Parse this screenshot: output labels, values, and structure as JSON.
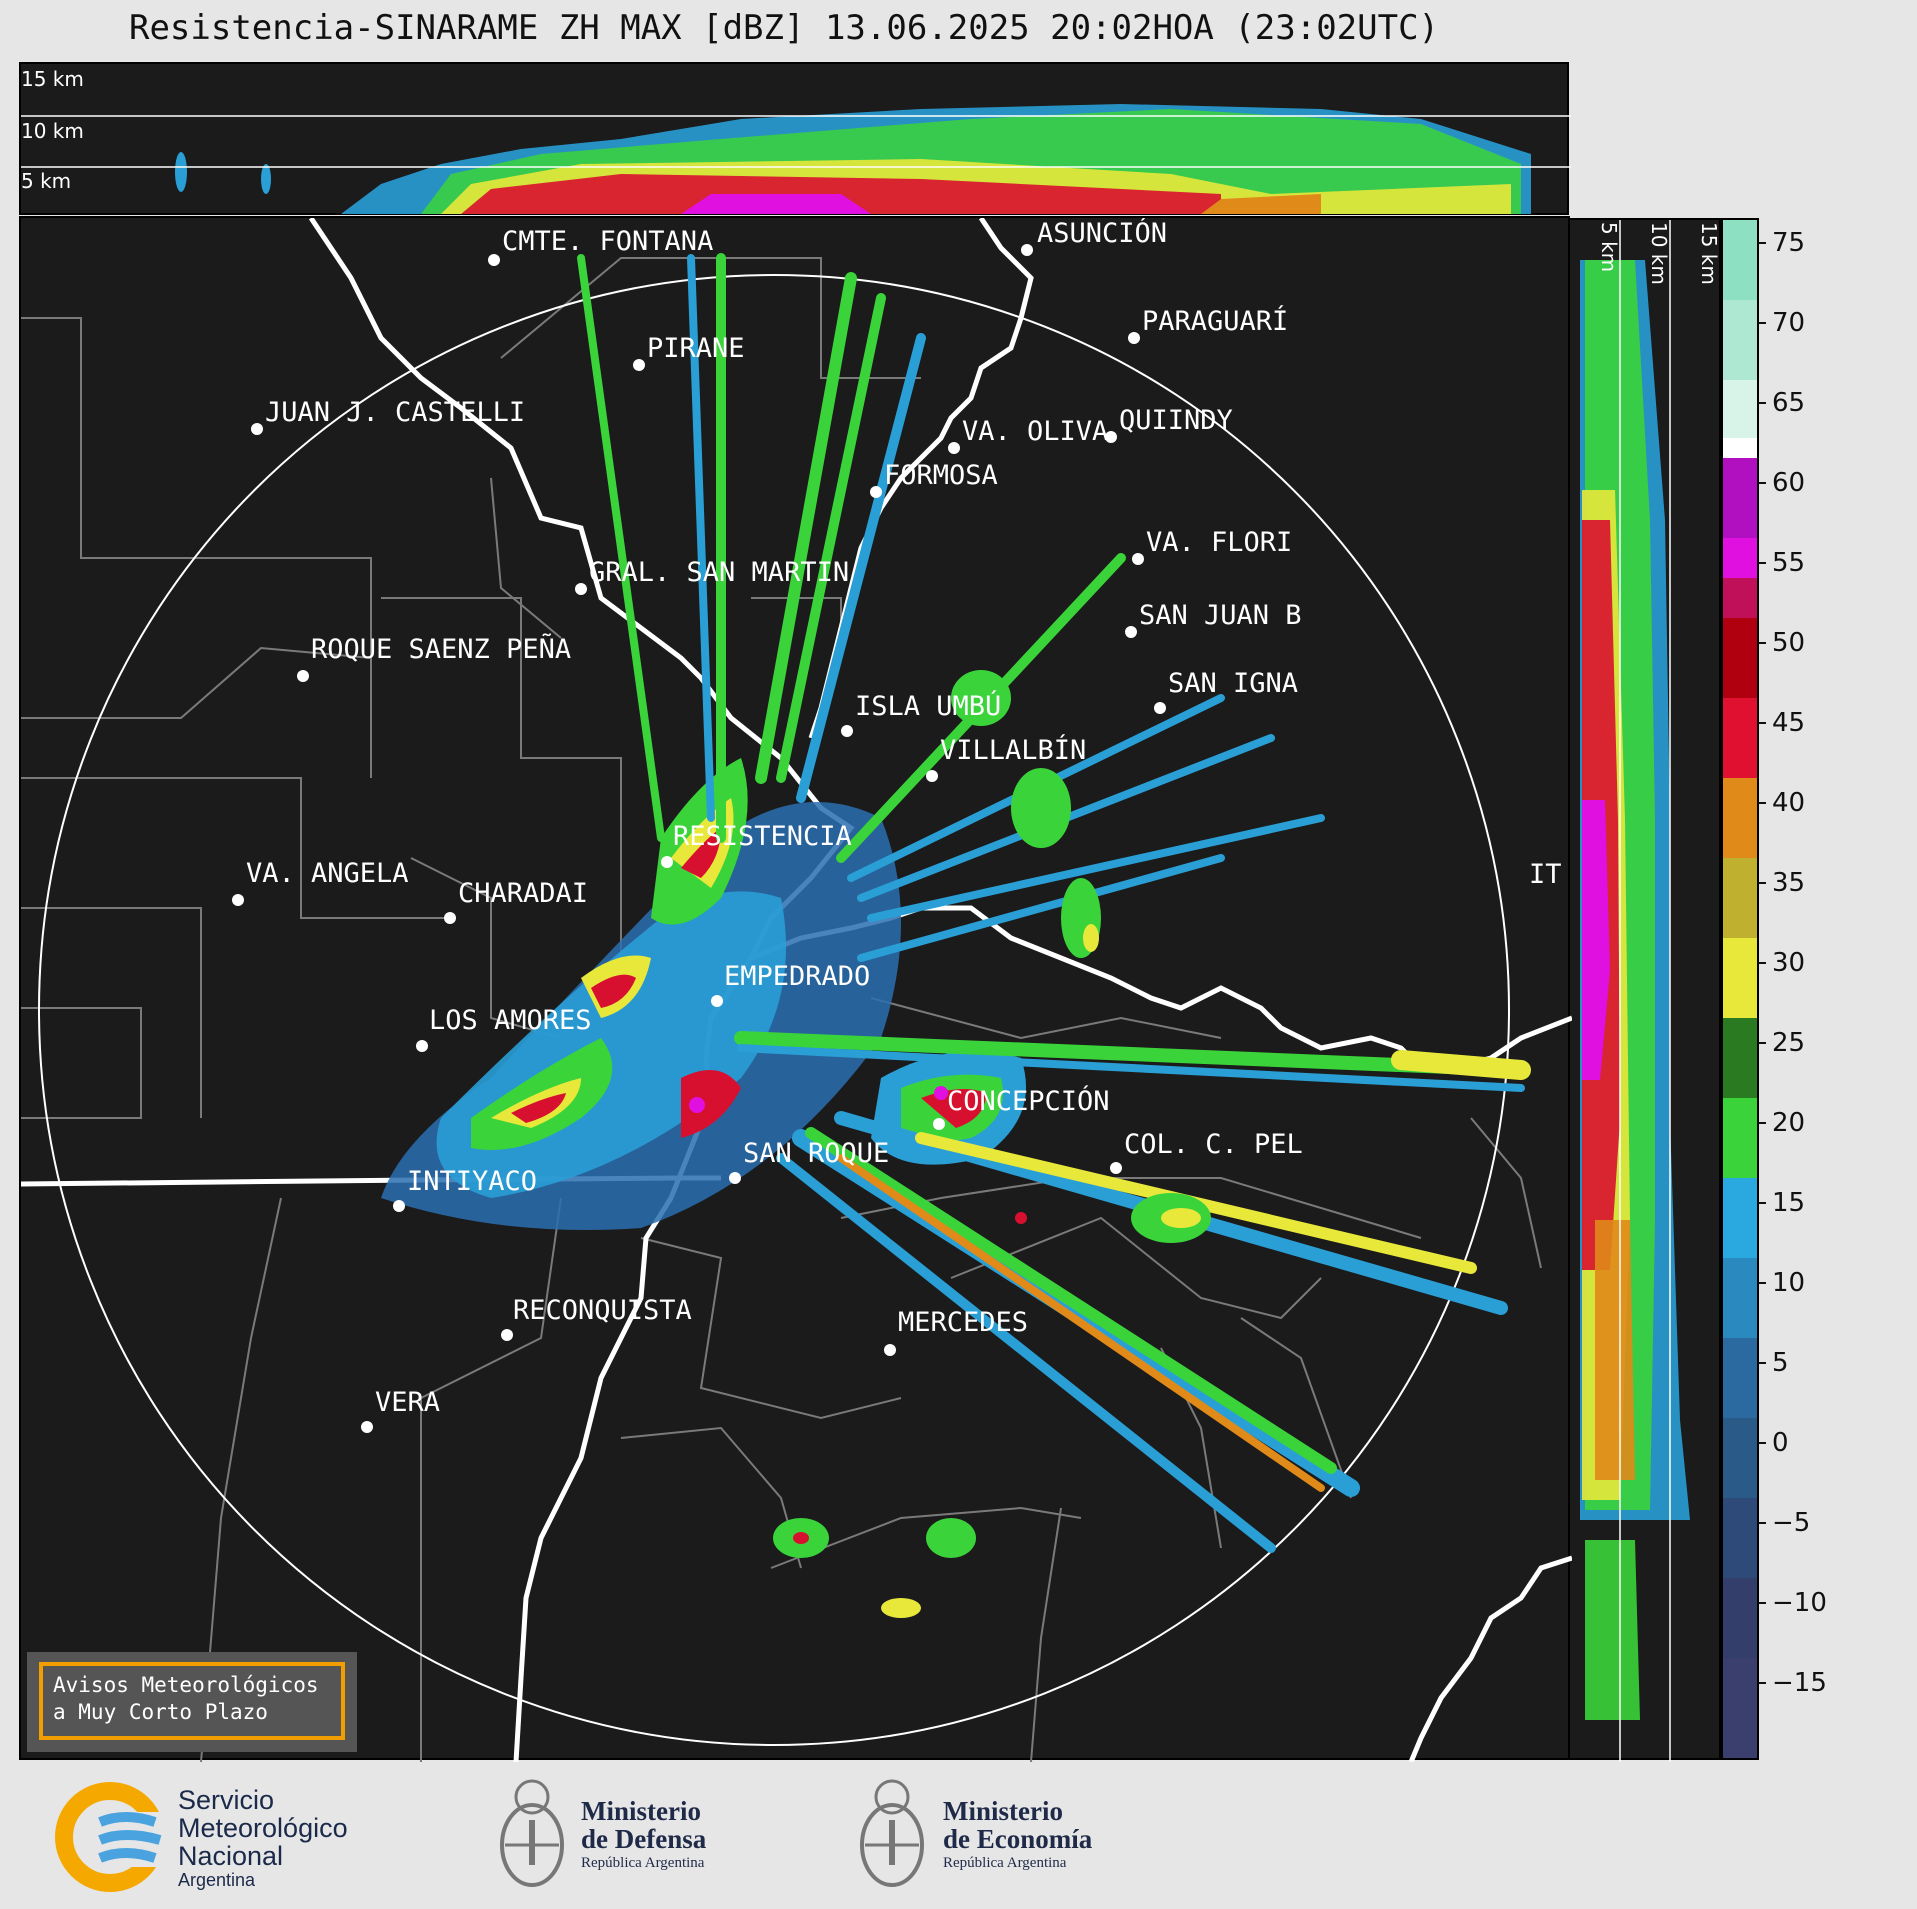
{
  "title": "Resistencia-SINARAME ZH MAX [dBZ] 13.06.2025 20:02HOA (23:02UTC)",
  "cross_sections": {
    "ew_altitudes": [
      "15 km",
      "10 km",
      "5 km"
    ],
    "ns_altitudes": [
      "5 km",
      "10 km",
      "15 km"
    ]
  },
  "cities": [
    {
      "name": "CMTE. FONTANA"
    },
    {
      "name": "ASUNCIÓN"
    },
    {
      "name": "PARAGUARÍ"
    },
    {
      "name": "PIRANE"
    },
    {
      "name": "JUAN J. CASTELLI"
    },
    {
      "name": "VA. OLIVA"
    },
    {
      "name": "QUIINDY"
    },
    {
      "name": "FORMOSA"
    },
    {
      "name": "VA. FLORI"
    },
    {
      "name": "GRAL. SAN MARTIN"
    },
    {
      "name": "SAN JUAN B"
    },
    {
      "name": "ROQUE SAENZ PEÑA"
    },
    {
      "name": "SAN IGNA"
    },
    {
      "name": "ISLA UMBÚ"
    },
    {
      "name": "VILLALBÍN"
    },
    {
      "name": "RESISTENCIA"
    },
    {
      "name": "VA. ANGELA"
    },
    {
      "name": "CHARADAI"
    },
    {
      "name": "IT"
    },
    {
      "name": "EMPEDRADO"
    },
    {
      "name": "LOS AMORES"
    },
    {
      "name": "CONCEPCIÓN"
    },
    {
      "name": "SAN ROQUE"
    },
    {
      "name": "COL. C. PEL"
    },
    {
      "name": "INTIYACO"
    },
    {
      "name": "RECONQUISTA"
    },
    {
      "name": "MERCEDES"
    },
    {
      "name": "VERA"
    }
  ],
  "colorbar": {
    "unit": "dBZ",
    "ticks": [
      "75",
      "70",
      "65",
      "60",
      "55",
      "50",
      "45",
      "40",
      "35",
      "30",
      "25",
      "20",
      "15",
      "10",
      "5",
      "0",
      "−5",
      "−10",
      "−15"
    ],
    "range": [
      -20,
      77
    ],
    "colors": {
      "low": "#3a3f6e",
      "blue": "#2a9fd6",
      "green": "#3ad43a",
      "yellow": "#e8e83a",
      "orange": "#e08a1a",
      "red": "#d81030",
      "magenta": "#e010e0",
      "white": "#ffffff",
      "teal": "#7de0c0"
    }
  },
  "alert_box": {
    "line1": "Avisos Meteorológicos",
    "line2": "a Muy Corto Plazo"
  },
  "logos": {
    "smn": {
      "line1": "Servicio",
      "line2": "Meteorológico",
      "line3": "Nacional",
      "line4": "Argentina"
    },
    "defensa": {
      "line1": "Ministerio",
      "line2": "de Defensa",
      "line3": "República Argentina"
    },
    "economia": {
      "line1": "Ministerio",
      "line2": "de Economía",
      "line3": "República Argentina"
    }
  }
}
